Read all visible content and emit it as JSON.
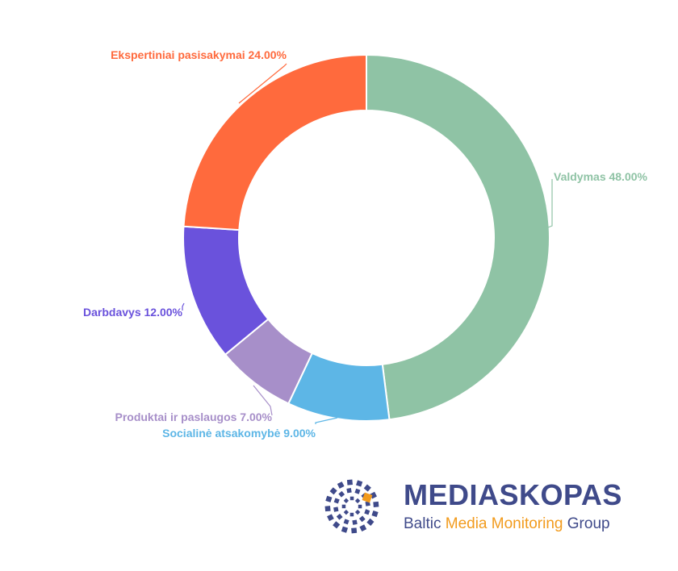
{
  "chart_data": {
    "type": "donut",
    "title": "",
    "slices": [
      {
        "label": "Valdymas",
        "value": 48.0,
        "display": "Valdymas 48.00%",
        "color": "#8fc3a5"
      },
      {
        "label": "Socialinė atsakomybė",
        "value": 9.0,
        "display": "Socialinė atsakomybė 9.00%",
        "color": "#5db6e6"
      },
      {
        "label": "Produktai ir paslaugos",
        "value": 7.0,
        "display": "Produktai ir paslaugos 7.00%",
        "color": "#a78fc9"
      },
      {
        "label": "Darbdavys",
        "value": 12.0,
        "display": "Darbdavys 12.00%",
        "color": "#6a52dc"
      },
      {
        "label": "Ekspertiniai pasisakymai",
        "value": 24.0,
        "display": "Ekspertiniai pasisakymai 24.00%",
        "color": "#ff6a3d"
      }
    ],
    "legend": "none",
    "labels": "outside-with-leader-lines"
  },
  "logo": {
    "name": "MEDIASKOPAS",
    "tagline_part1": "Baltic ",
    "tagline_part2": "Media Monitoring",
    "tagline_part3": " Group",
    "primary_color": "#3f4a8a",
    "accent_color": "#f29b1d"
  }
}
